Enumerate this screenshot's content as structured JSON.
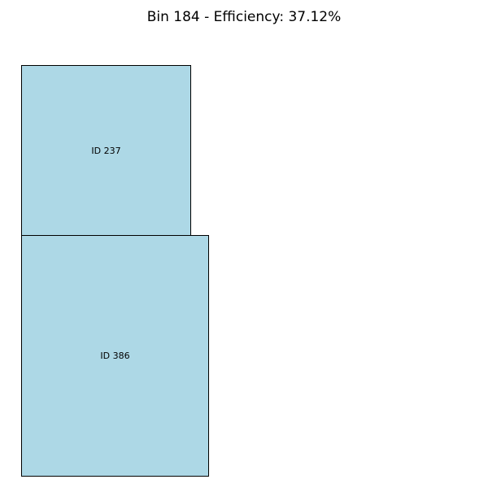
{
  "title": "Bin 184 - Efficiency: 37.12%",
  "bin": {
    "id": 184,
    "efficiency_percent": 37.12
  },
  "items": [
    {
      "label": "ID 237",
      "fill_color": "#add8e6",
      "edge_color": "#000000"
    },
    {
      "label": "ID 386",
      "fill_color": "#add8e6",
      "edge_color": "#000000"
    }
  ]
}
